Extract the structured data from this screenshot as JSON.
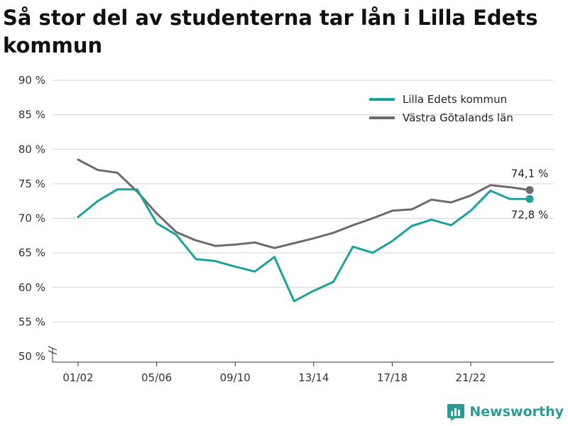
{
  "title": "Så stor del av studenterna tar lån i Lilla Edets kommun",
  "brand": {
    "name": "Newsworthy"
  },
  "colors": {
    "teal": "#1aa39a",
    "gray": "#6e6a70",
    "brand": "#2a9c95"
  },
  "chart_data": {
    "type": "line",
    "ylim": [
      50,
      90
    ],
    "y_ticks": [
      50,
      55,
      60,
      65,
      70,
      75,
      80,
      85,
      90
    ],
    "y_tick_suffix": " %",
    "axis_break": true,
    "x_tick_labels": [
      {
        "index": 0,
        "label": "01/02"
      },
      {
        "index": 4,
        "label": "05/06"
      },
      {
        "index": 8,
        "label": "09/10"
      },
      {
        "index": 12,
        "label": "13/14"
      },
      {
        "index": 16,
        "label": "17/18"
      },
      {
        "index": 20,
        "label": "21/22"
      }
    ],
    "legend_position": "top-right",
    "series": [
      {
        "name": "Lilla Edets kommun",
        "color": "#1aa39a",
        "values": [
          70.2,
          72.5,
          74.2,
          74.2,
          69.3,
          67.6,
          64.1,
          63.8,
          63.0,
          62.3,
          64.4,
          58.0,
          59.5,
          60.8,
          65.9,
          65.0,
          66.7,
          68.9,
          69.8,
          69.0,
          71.1,
          74.0,
          72.8,
          72.8
        ],
        "end_label": "72,8 %"
      },
      {
        "name": "Västra Götalands län",
        "color": "#6e6a70",
        "values": [
          78.5,
          77.0,
          76.6,
          73.9,
          70.7,
          68.0,
          66.8,
          66.0,
          66.2,
          66.5,
          65.7,
          66.4,
          67.1,
          67.9,
          69.0,
          70.0,
          71.1,
          71.3,
          72.7,
          72.3,
          73.3,
          74.8,
          74.5,
          74.1
        ],
        "end_label": "74,1 %"
      }
    ]
  }
}
